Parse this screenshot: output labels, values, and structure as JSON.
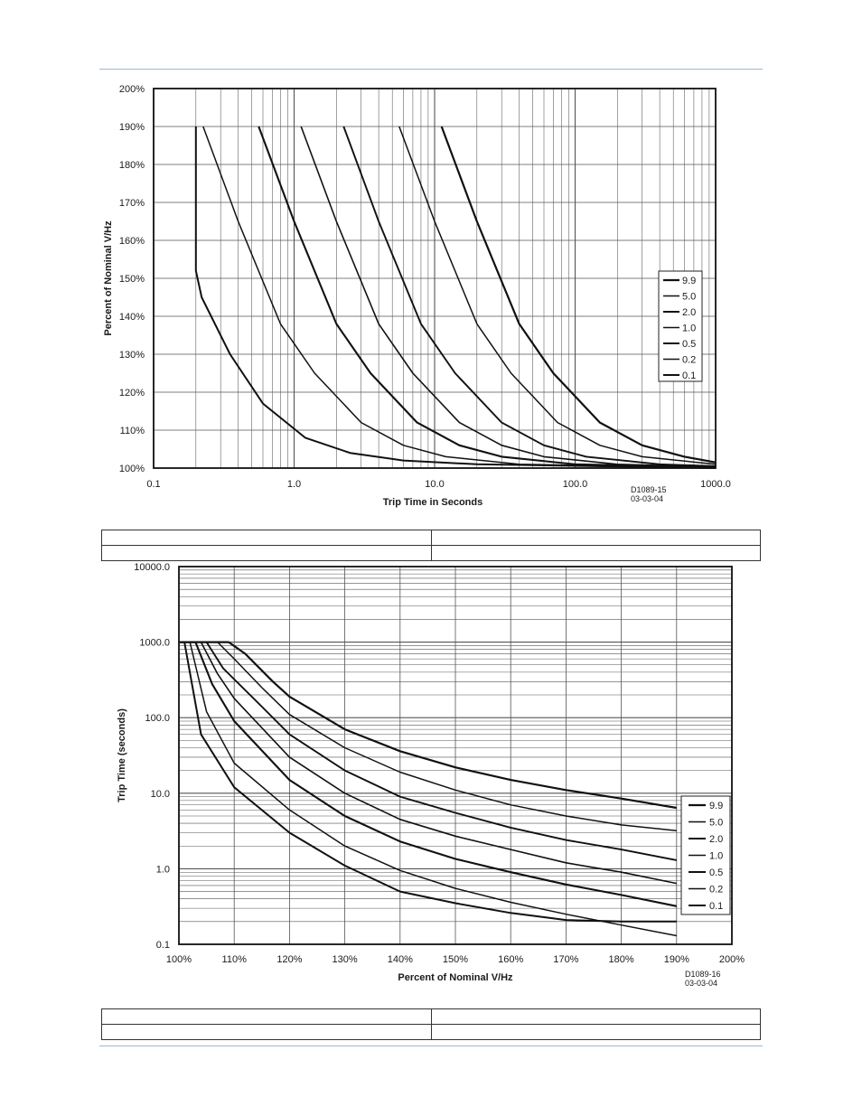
{
  "charts": [
    {
      "id": "chart1",
      "title": "",
      "xlabel": "Trip Time in Seconds",
      "ylabel": "Percent of Nominal V/Hz",
      "xticks": [
        "0.1",
        "1.0",
        "10.0",
        "100.0",
        "1000.0"
      ],
      "yticks": [
        "100%",
        "110%",
        "120%",
        "130%",
        "140%",
        "150%",
        "160%",
        "170%",
        "180%",
        "190%",
        "200%"
      ],
      "legend": [
        "9.9",
        "5.0",
        "2.0",
        "1.0",
        "0.5",
        "0.2",
        "0.1"
      ],
      "drawing_id": "D1089-15",
      "drawing_date": "03-03-04"
    },
    {
      "id": "chart2",
      "title": "",
      "xlabel": "Percent of Nominal V/Hz",
      "ylabel": "Trip Time (seconds)",
      "xticks": [
        "100%",
        "110%",
        "120%",
        "130%",
        "140%",
        "150%",
        "160%",
        "170%",
        "180%",
        "190%",
        "200%"
      ],
      "yticks": [
        "0.1",
        "1.0",
        "10.0",
        "100.0",
        "1000.0",
        "10000.0"
      ],
      "legend": [
        "9.9",
        "5.0",
        "2.0",
        "1.0",
        "0.5",
        "0.2",
        "0.1"
      ],
      "drawing_id": "D1089-16",
      "drawing_date": "03-03-04"
    }
  ],
  "chart_data": [
    {
      "type": "line",
      "x_axis": {
        "label": "Trip Time in Seconds",
        "scale": "log",
        "range": [
          0.1,
          1000
        ]
      },
      "y_axis": {
        "label": "Percent of Nominal V/Hz",
        "range": [
          100,
          200
        ]
      },
      "grid": true,
      "legend_position": "right",
      "series": [
        {
          "name": "9.9",
          "points": [
            [
              11.2,
              190
            ],
            [
              20,
              165
            ],
            [
              40,
              138
            ],
            [
              70,
              125
            ],
            [
              150,
              112
            ],
            [
              300,
              106
            ],
            [
              600,
              103
            ],
            [
              1000,
              101.5
            ]
          ]
        },
        {
          "name": "5.0",
          "points": [
            [
              5.6,
              190
            ],
            [
              10,
              165
            ],
            [
              20,
              138
            ],
            [
              35,
              125
            ],
            [
              75,
              112
            ],
            [
              150,
              106
            ],
            [
              300,
              103
            ],
            [
              1000,
              101
            ]
          ]
        },
        {
          "name": "2.0",
          "points": [
            [
              2.25,
              190
            ],
            [
              4,
              165
            ],
            [
              8,
              138
            ],
            [
              14,
              125
            ],
            [
              30,
              112
            ],
            [
              60,
              106
            ],
            [
              120,
              103
            ],
            [
              400,
              101
            ],
            [
              1000,
              100.5
            ]
          ]
        },
        {
          "name": "1.0",
          "points": [
            [
              1.12,
              190
            ],
            [
              2,
              165
            ],
            [
              4,
              138
            ],
            [
              7,
              125
            ],
            [
              15,
              112
            ],
            [
              30,
              106
            ],
            [
              60,
              103
            ],
            [
              200,
              101
            ],
            [
              1000,
              100.3
            ]
          ]
        },
        {
          "name": "0.5",
          "points": [
            [
              0.56,
              190
            ],
            [
              1,
              165
            ],
            [
              2,
              138
            ],
            [
              3.5,
              125
            ],
            [
              7.5,
              112
            ],
            [
              15,
              106
            ],
            [
              30,
              103
            ],
            [
              100,
              101
            ],
            [
              1000,
              100.2
            ]
          ]
        },
        {
          "name": "0.2",
          "points": [
            [
              0.225,
              190
            ],
            [
              0.4,
              165
            ],
            [
              0.8,
              138
            ],
            [
              1.4,
              125
            ],
            [
              3,
              112
            ],
            [
              6,
              106
            ],
            [
              12,
              103
            ],
            [
              40,
              101
            ],
            [
              1000,
              100.1
            ]
          ]
        },
        {
          "name": "0.1",
          "points": [
            [
              0.2,
              190
            ],
            [
              0.2,
              152
            ],
            [
              0.22,
              145
            ],
            [
              0.35,
              130
            ],
            [
              0.6,
              117
            ],
            [
              1.2,
              108
            ],
            [
              2.5,
              104
            ],
            [
              6,
              102
            ],
            [
              20,
              101
            ],
            [
              1000,
              100
            ]
          ]
        }
      ]
    },
    {
      "type": "line",
      "x_axis": {
        "label": "Percent of Nominal V/Hz",
        "range": [
          100,
          200
        ]
      },
      "y_axis": {
        "label": "Trip Time (seconds)",
        "scale": "log",
        "range": [
          0.1,
          10000
        ]
      },
      "grid": true,
      "legend_position": "bottom-right",
      "series": [
        {
          "name": "9.9",
          "points": [
            [
              100,
              1000
            ],
            [
              109,
              1000
            ],
            [
              112,
              700
            ],
            [
              117,
              300
            ],
            [
              120,
              190
            ],
            [
              130,
              70
            ],
            [
              140,
              36
            ],
            [
              150,
              22
            ],
            [
              160,
              15
            ],
            [
              170,
              11
            ],
            [
              180,
              8.5
            ],
            [
              190,
              6.4
            ]
          ]
        },
        {
          "name": "5.0",
          "points": [
            [
              100,
              1000
            ],
            [
              107,
              1000
            ],
            [
              110,
              600
            ],
            [
              115,
              250
            ],
            [
              120,
              110
            ],
            [
              130,
              40
            ],
            [
              140,
              19
            ],
            [
              150,
              11
            ],
            [
              160,
              7
            ],
            [
              170,
              5
            ],
            [
              180,
              3.8
            ],
            [
              190,
              3.2
            ]
          ]
        },
        {
          "name": "2.0",
          "points": [
            [
              100,
              1000
            ],
            [
              105,
              1000
            ],
            [
              108,
              450
            ],
            [
              115,
              140
            ],
            [
              120,
              60
            ],
            [
              130,
              20
            ],
            [
              140,
              9
            ],
            [
              150,
              5.5
            ],
            [
              160,
              3.5
            ],
            [
              170,
              2.4
            ],
            [
              180,
              1.8
            ],
            [
              190,
              1.3
            ]
          ]
        },
        {
          "name": "1.0",
          "points": [
            [
              100,
              1000
            ],
            [
              104,
              1000
            ],
            [
              107,
              380
            ],
            [
              110,
              180
            ],
            [
              120,
              30
            ],
            [
              130,
              10
            ],
            [
              140,
              4.5
            ],
            [
              150,
              2.7
            ],
            [
              160,
              1.8
            ],
            [
              170,
              1.2
            ],
            [
              180,
              0.9
            ],
            [
              190,
              0.64
            ]
          ]
        },
        {
          "name": "0.5",
          "points": [
            [
              100,
              1000
            ],
            [
              103,
              1000
            ],
            [
              106,
              280
            ],
            [
              110,
              90
            ],
            [
              120,
              15
            ],
            [
              130,
              5
            ],
            [
              140,
              2.3
            ],
            [
              150,
              1.35
            ],
            [
              160,
              0.9
            ],
            [
              170,
              0.62
            ],
            [
              180,
              0.45
            ],
            [
              190,
              0.32
            ]
          ]
        },
        {
          "name": "0.2",
          "points": [
            [
              100,
              1000
            ],
            [
              102,
              1000
            ],
            [
              105,
              120
            ],
            [
              110,
              25
            ],
            [
              120,
              6
            ],
            [
              130,
              2
            ],
            [
              140,
              0.95
            ],
            [
              150,
              0.55
            ],
            [
              160,
              0.36
            ],
            [
              170,
              0.25
            ],
            [
              180,
              0.18
            ],
            [
              190,
              0.13
            ]
          ]
        },
        {
          "name": "0.1",
          "points": [
            [
              100,
              1000
            ],
            [
              101,
              1000
            ],
            [
              104,
              60
            ],
            [
              110,
              12
            ],
            [
              120,
              3
            ],
            [
              130,
              1.1
            ],
            [
              140,
              0.5
            ],
            [
              150,
              0.35
            ],
            [
              160,
              0.26
            ],
            [
              170,
              0.21
            ],
            [
              180,
              0.2
            ],
            [
              190,
              0.2
            ]
          ]
        }
      ]
    }
  ]
}
